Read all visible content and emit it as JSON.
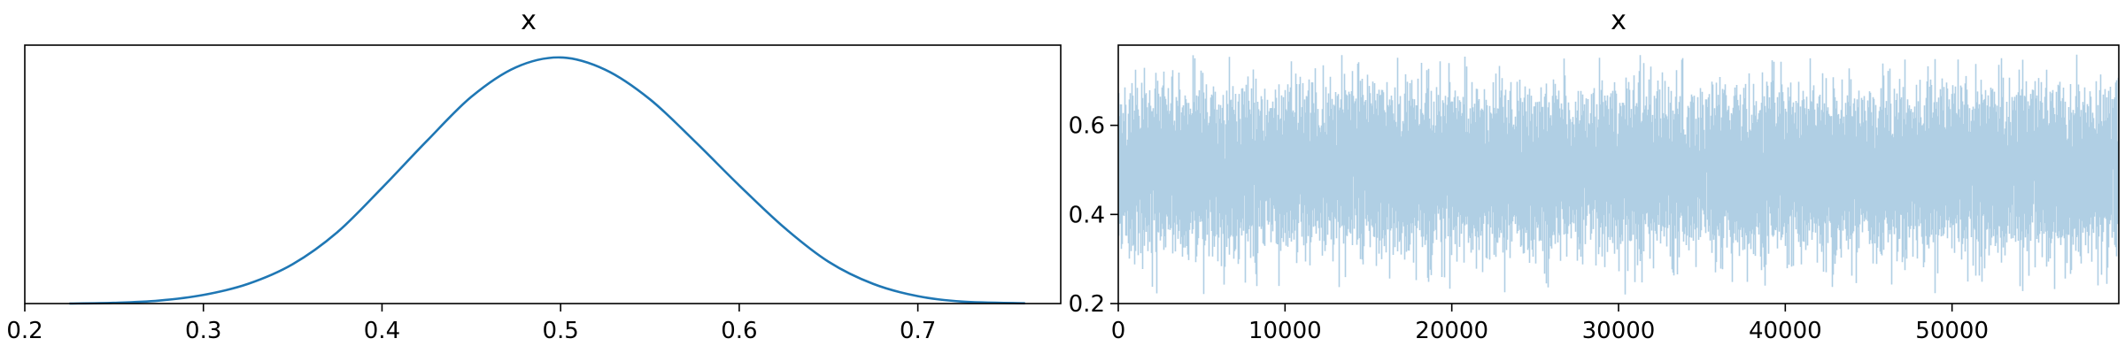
{
  "chart_data": [
    {
      "type": "line",
      "title": "x",
      "xlabel": "",
      "ylabel": "",
      "xlim": [
        0.2,
        0.78
      ],
      "ylim": [
        0,
        1.05
      ],
      "x_ticks": [
        "0.2",
        "0.3",
        "0.4",
        "0.5",
        "0.6",
        "0.7"
      ],
      "y_ticks": [],
      "grid": false,
      "color": "#1f77b4",
      "series": [
        {
          "x": [
            0.225,
            0.25,
            0.275,
            0.3,
            0.325,
            0.35,
            0.375,
            0.4,
            0.425,
            0.45,
            0.475,
            0.5,
            0.525,
            0.55,
            0.575,
            0.6,
            0.625,
            0.65,
            0.675,
            0.7,
            0.725,
            0.76
          ],
          "values": [
            0.0,
            0.003,
            0.012,
            0.035,
            0.08,
            0.16,
            0.29,
            0.47,
            0.66,
            0.84,
            0.96,
            1.0,
            0.95,
            0.83,
            0.66,
            0.48,
            0.31,
            0.17,
            0.08,
            0.03,
            0.008,
            0.001
          ]
        }
      ]
    },
    {
      "type": "line",
      "title": "x",
      "xlabel": "",
      "ylabel": "",
      "xlim": [
        0,
        60000
      ],
      "ylim": [
        0.2,
        0.78
      ],
      "x_ticks": [
        "0",
        "10000",
        "20000",
        "30000",
        "40000",
        "50000"
      ],
      "y_ticks": [
        "0.2",
        "0.4",
        "0.6"
      ],
      "grid": false,
      "color": "#b0cfe4",
      "trace_summary": {
        "samples": 60000,
        "center": 0.5,
        "typical_low": 0.33,
        "typical_high": 0.67,
        "min_visible": 0.22,
        "max_visible": 0.76
      }
    }
  ]
}
